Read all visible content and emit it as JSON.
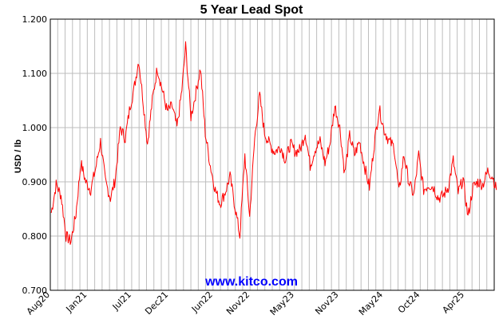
{
  "chart_data": {
    "type": "line",
    "title": "5 Year Lead Spot",
    "ylabel": "USD / lb",
    "xlabel": "",
    "ylim": [
      0.7,
      1.2
    ],
    "yticks": [
      "0.700",
      "0.800",
      "0.900",
      "1.000",
      "1.100",
      "1.200"
    ],
    "x_tick_labels": [
      "Aug20",
      "Jan21",
      "Jul21",
      "Dec21",
      "Jun22",
      "Nov22",
      "May23",
      "Nov23",
      "May24",
      "Oct24",
      "Apr25"
    ],
    "x_range": [
      "2020-08",
      "2025-08"
    ],
    "grid": true,
    "series": [
      {
        "color": "#ff0000",
        "x": [
          "2020-08-05",
          "2020-08-25",
          "2020-09-15",
          "2020-10-05",
          "2020-10-25",
          "2020-11-15",
          "2020-12-05",
          "2020-12-25",
          "2021-01-15",
          "2021-02-05",
          "2021-02-25",
          "2021-03-15",
          "2021-04-05",
          "2021-04-25",
          "2021-05-15",
          "2021-06-05",
          "2021-06-25",
          "2021-07-10",
          "2021-07-30",
          "2021-08-15",
          "2021-09-05",
          "2021-09-25",
          "2021-10-15",
          "2021-11-05",
          "2021-11-25",
          "2021-12-15",
          "2022-01-05",
          "2022-01-25",
          "2022-02-10",
          "2022-03-01",
          "2022-03-20",
          "2022-04-10",
          "2022-04-30",
          "2022-05-20",
          "2022-06-10",
          "2022-06-30",
          "2022-07-20",
          "2022-08-10",
          "2022-08-30",
          "2022-09-20",
          "2022-10-10",
          "2022-10-30",
          "2022-11-20",
          "2022-12-10",
          "2022-12-30",
          "2023-01-20",
          "2023-02-10",
          "2023-03-05",
          "2023-03-25",
          "2023-04-15",
          "2023-05-05",
          "2023-05-25",
          "2023-06-15",
          "2023-07-05",
          "2023-07-25",
          "2023-08-15",
          "2023-09-05",
          "2023-09-25",
          "2023-10-15",
          "2023-11-05",
          "2023-11-25",
          "2023-12-15",
          "2024-01-05",
          "2024-01-25",
          "2024-02-15",
          "2024-03-05",
          "2024-03-25",
          "2024-04-15",
          "2024-05-05",
          "2024-05-25",
          "2024-06-15",
          "2024-07-05",
          "2024-07-25",
          "2024-08-15",
          "2024-09-05",
          "2024-09-25",
          "2024-10-15",
          "2024-11-05",
          "2024-11-25",
          "2024-12-15",
          "2025-01-05",
          "2025-01-25",
          "2025-02-15",
          "2025-03-05",
          "2025-03-25",
          "2025-04-15",
          "2025-05-05",
          "2025-05-25",
          "2025-06-15",
          "2025-07-05",
          "2025-07-25",
          "2025-08-10"
        ],
        "y": [
          0.843,
          0.895,
          0.875,
          0.8,
          0.79,
          0.84,
          0.935,
          0.9,
          0.885,
          0.925,
          0.975,
          0.9,
          0.87,
          0.905,
          1.0,
          0.98,
          1.04,
          1.07,
          1.125,
          1.06,
          0.97,
          1.05,
          1.11,
          1.07,
          1.03,
          1.04,
          1.0,
          1.07,
          1.15,
          1.02,
          1.06,
          1.11,
          0.99,
          0.93,
          0.885,
          0.86,
          0.88,
          0.91,
          0.855,
          0.8,
          0.95,
          0.835,
          0.98,
          1.06,
          0.99,
          0.97,
          0.955,
          0.965,
          0.94,
          0.97,
          0.955,
          0.96,
          0.99,
          0.93,
          0.96,
          0.975,
          0.935,
          0.97,
          1.04,
          1.0,
          0.915,
          0.985,
          0.95,
          0.975,
          0.93,
          0.89,
          0.97,
          1.035,
          0.995,
          0.975,
          0.965,
          0.88,
          0.95,
          0.9,
          0.875,
          0.95,
          0.885,
          0.895,
          0.89,
          0.87,
          0.875,
          0.89,
          0.94,
          0.88,
          0.905,
          0.835,
          0.89,
          0.9,
          0.895,
          0.92,
          0.91,
          0.885
        ]
      }
    ]
  },
  "watermark": {
    "text": "www.kitco.com",
    "color": "#0000ff"
  }
}
